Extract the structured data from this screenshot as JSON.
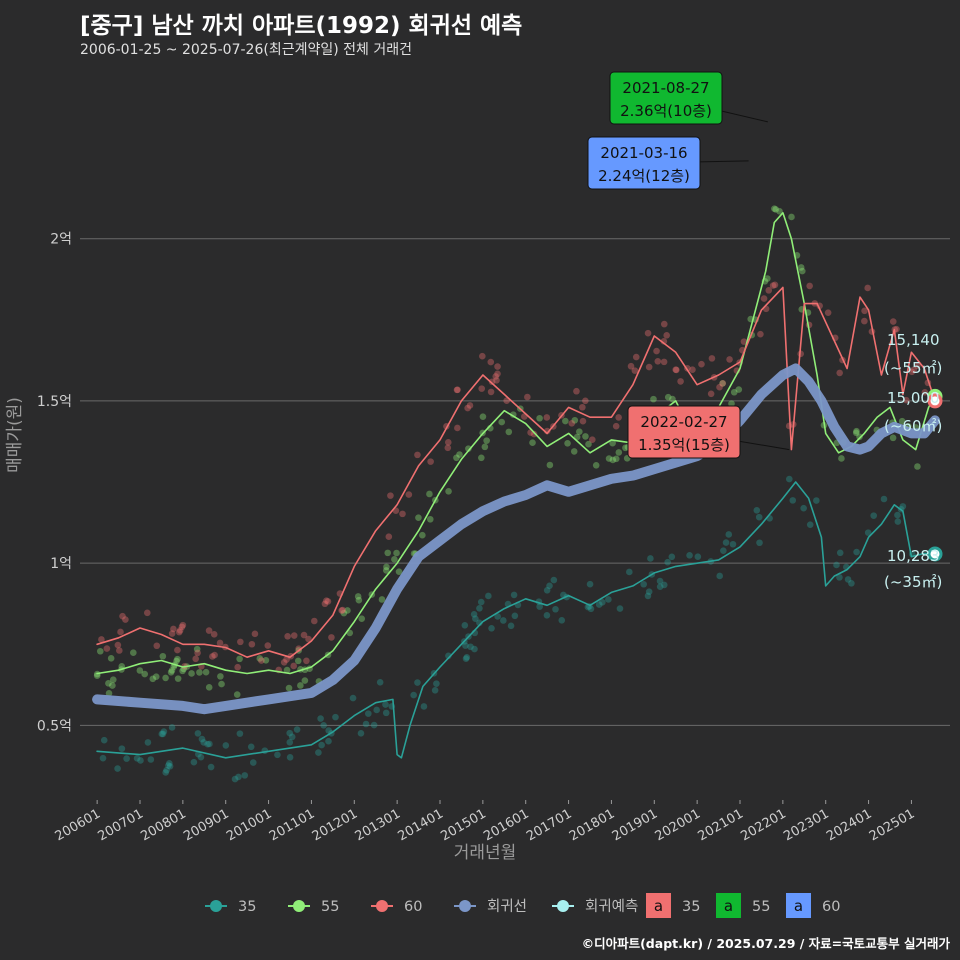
{
  "header": {
    "title": "[중구] 남산 까치 아파트(1992) 회귀선 예측",
    "subtitle": "2006-01-25 ~ 2025-07-26(최근계약일) 전체 거래건"
  },
  "footer": "©디아파트(dapt.kr) / 2025.07.29 / 자료=국토교통부 실거래가",
  "colors": {
    "background": "#2b2b2c",
    "s35": "#2aa198",
    "s55": "#90ee78",
    "s60": "#f07070",
    "regression": "#7b96c8",
    "forecast": "#a8f0f0",
    "grid": "#6a6a6a"
  },
  "chart_data": {
    "type": "line",
    "title": "[중구] 남산 까치 아파트(1992) 회귀선 예측",
    "xlabel": "거래년월",
    "ylabel": "매매가(원)",
    "x_ticks": [
      "200601",
      "200701",
      "200801",
      "200901",
      "201001",
      "201101",
      "201201",
      "201301",
      "201401",
      "201501",
      "201601",
      "201701",
      "201801",
      "201901",
      "202001",
      "202101",
      "202201",
      "202301",
      "202401",
      "202501"
    ],
    "y_ticks": [
      {
        "value": 0.5,
        "label": "0.5억"
      },
      {
        "value": 1.0,
        "label": "1억"
      },
      {
        "value": 1.5,
        "label": "1.5억"
      },
      {
        "value": 2.0,
        "label": "2억"
      }
    ],
    "xlim": [
      2005.6,
      2025.9
    ],
    "ylim": [
      0.27,
      2.52
    ],
    "unit": "억원",
    "grid": "horizontal",
    "legend_position": "bottom",
    "series": [
      {
        "name": "35",
        "key": "s35",
        "x": [
          2006.0,
          2007.0,
          2008.0,
          2009.0,
          2010.0,
          2011.0,
          2011.5,
          2012.0,
          2012.5,
          2012.9,
          2013.0,
          2013.1,
          2013.3,
          2013.6,
          2014.0,
          2014.5,
          2015.0,
          2015.5,
          2016.0,
          2016.5,
          2017.0,
          2017.5,
          2018.0,
          2018.5,
          2019.0,
          2019.5,
          2020.0,
          2020.5,
          2021.0,
          2021.5,
          2022.0,
          2022.3,
          2022.6,
          2022.9,
          2023.0,
          2023.2,
          2023.5,
          2023.8,
          2024.0,
          2024.3,
          2024.6,
          2024.8,
          2025.0,
          2025.3,
          2025.55
        ],
        "y": [
          0.42,
          0.41,
          0.43,
          0.4,
          0.42,
          0.44,
          0.48,
          0.53,
          0.57,
          0.58,
          0.41,
          0.4,
          0.5,
          0.62,
          0.68,
          0.75,
          0.82,
          0.86,
          0.89,
          0.87,
          0.9,
          0.87,
          0.91,
          0.93,
          0.97,
          0.99,
          1.0,
          1.01,
          1.05,
          1.12,
          1.2,
          1.25,
          1.2,
          1.08,
          0.93,
          0.96,
          0.98,
          1.02,
          1.08,
          1.12,
          1.18,
          1.16,
          1.02,
          1.03,
          1.03
        ]
      },
      {
        "name": "55",
        "key": "s55",
        "x": [
          2006.0,
          2006.5,
          2007.0,
          2007.5,
          2008.0,
          2008.5,
          2009.0,
          2009.5,
          2010.0,
          2010.5,
          2011.0,
          2011.5,
          2012.0,
          2012.5,
          2013.0,
          2013.5,
          2014.0,
          2014.5,
          2015.0,
          2015.5,
          2016.0,
          2016.5,
          2017.0,
          2017.5,
          2018.0,
          2018.5,
          2019.0,
          2019.5,
          2020.0,
          2020.5,
          2021.0,
          2021.3,
          2021.6,
          2021.8,
          2022.0,
          2022.2,
          2022.5,
          2022.8,
          2023.0,
          2023.3,
          2023.6,
          2023.9,
          2024.2,
          2024.5,
          2024.8,
          2025.1,
          2025.4,
          2025.55
        ],
        "y": [
          0.66,
          0.67,
          0.69,
          0.7,
          0.68,
          0.69,
          0.67,
          0.66,
          0.67,
          0.66,
          0.68,
          0.73,
          0.82,
          0.92,
          1.0,
          1.1,
          1.22,
          1.32,
          1.4,
          1.47,
          1.43,
          1.36,
          1.4,
          1.34,
          1.38,
          1.37,
          1.45,
          1.5,
          1.37,
          1.48,
          1.6,
          1.75,
          1.9,
          2.05,
          2.08,
          2.0,
          1.8,
          1.58,
          1.4,
          1.34,
          1.36,
          1.4,
          1.45,
          1.48,
          1.38,
          1.35,
          1.48,
          1.514
        ]
      },
      {
        "name": "60",
        "key": "s60",
        "x": [
          2006.0,
          2006.5,
          2007.0,
          2007.5,
          2008.0,
          2008.5,
          2009.0,
          2009.5,
          2010.0,
          2010.5,
          2011.0,
          2011.5,
          2012.0,
          2012.5,
          2013.0,
          2013.5,
          2014.0,
          2014.5,
          2015.0,
          2015.5,
          2016.0,
          2016.5,
          2017.0,
          2017.5,
          2018.0,
          2018.5,
          2019.0,
          2019.5,
          2020.0,
          2020.5,
          2021.0,
          2021.5,
          2022.0,
          2022.2,
          2022.5,
          2022.8,
          2023.5,
          2023.8,
          2024.0,
          2024.3,
          2024.6,
          2024.8,
          2025.0,
          2025.3,
          2025.55
        ],
        "y": [
          0.75,
          0.77,
          0.8,
          0.78,
          0.75,
          0.75,
          0.74,
          0.71,
          0.73,
          0.71,
          0.76,
          0.84,
          0.99,
          1.1,
          1.18,
          1.3,
          1.38,
          1.5,
          1.58,
          1.52,
          1.46,
          1.4,
          1.48,
          1.45,
          1.45,
          1.55,
          1.7,
          1.65,
          1.55,
          1.58,
          1.62,
          1.78,
          1.85,
          1.35,
          1.8,
          1.8,
          1.6,
          1.82,
          1.78,
          1.58,
          1.72,
          1.52,
          1.65,
          1.6,
          1.5
        ]
      },
      {
        "name": "회귀선",
        "key": "regression",
        "x": [
          2006.0,
          2007.0,
          2008.0,
          2008.5,
          2009.0,
          2010.0,
          2011.0,
          2011.5,
          2012.0,
          2012.5,
          2013.0,
          2013.5,
          2014.0,
          2014.5,
          2015.0,
          2015.5,
          2016.0,
          2016.5,
          2017.0,
          2017.5,
          2018.0,
          2018.5,
          2019.0,
          2019.5,
          2020.0,
          2020.5,
          2021.0,
          2021.5,
          2022.0,
          2022.3,
          2022.6,
          2022.9,
          2023.2,
          2023.5,
          2023.8,
          2024.0,
          2024.3,
          2024.6,
          2024.8,
          2025.0,
          2025.3,
          2025.55
        ],
        "y": [
          0.58,
          0.57,
          0.56,
          0.55,
          0.56,
          0.58,
          0.6,
          0.64,
          0.7,
          0.8,
          0.92,
          1.02,
          1.07,
          1.12,
          1.16,
          1.19,
          1.21,
          1.24,
          1.22,
          1.24,
          1.26,
          1.27,
          1.29,
          1.31,
          1.33,
          1.37,
          1.44,
          1.52,
          1.58,
          1.6,
          1.56,
          1.5,
          1.42,
          1.36,
          1.35,
          1.36,
          1.4,
          1.42,
          1.41,
          1.4,
          1.4,
          1.44
        ]
      },
      {
        "name": "회귀예측",
        "key": "forecast",
        "x": [],
        "y": []
      }
    ],
    "end_labels": [
      {
        "series": "55",
        "value_label": "15,140",
        "area_label": "(~55㎡)",
        "x": 2025.55,
        "y": 1.514
      },
      {
        "series": "60",
        "value_label": "15,000",
        "area_label": "(~60㎡)",
        "x": 2025.55,
        "y": 1.5
      },
      {
        "series": "35",
        "value_label": "10,283",
        "area_label": "(~35㎡)",
        "x": 2025.55,
        "y": 1.0283
      }
    ],
    "annotations": [
      {
        "series": "55",
        "date": "2021-08-27",
        "price": "2.36억(10층)",
        "x": 2021.65,
        "y": 2.36
      },
      {
        "series": "60",
        "date": "2021-03-16",
        "price": "2.24억(12층)",
        "x": 2021.2,
        "y": 2.24
      },
      {
        "series": "35",
        "date": "2022-02-27",
        "price": "1.35억(15층)",
        "x": 2022.15,
        "y": 1.35
      }
    ]
  },
  "legend": {
    "line_items": [
      {
        "label": "35",
        "key": "s35"
      },
      {
        "label": "55",
        "key": "s55"
      },
      {
        "label": "60",
        "key": "s60"
      },
      {
        "label": "회귀선",
        "key": "regression"
      },
      {
        "label": "회귀예측",
        "key": "forecast"
      }
    ],
    "box_items": [
      {
        "glyph": "a",
        "label": "35",
        "color": "#f07070"
      },
      {
        "glyph": "a",
        "label": "55",
        "color": "#10b830"
      },
      {
        "glyph": "a",
        "label": "60",
        "color": "#6699ff"
      }
    ]
  }
}
